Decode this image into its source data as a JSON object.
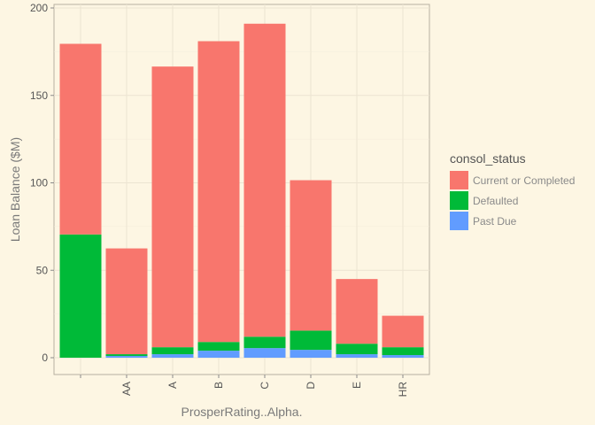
{
  "chart_data": {
    "type": "bar",
    "stacked": true,
    "xlabel": "ProsperRating..Alpha.",
    "ylabel": "Loan Balance ($M)",
    "categories": [
      "",
      "AA",
      "A",
      "B",
      "C",
      "D",
      "E",
      "HR"
    ],
    "ylim": [
      0,
      200
    ],
    "yticks": [
      0,
      50,
      100,
      150,
      200
    ],
    "grid": true,
    "legend_position": "right",
    "legend_title": "consol_status",
    "series": [
      {
        "name": "Past Due",
        "color": "#619cff",
        "values": [
          0,
          1,
          2,
          4,
          5.5,
          4.5,
          2,
          1.5
        ]
      },
      {
        "name": "Defaulted",
        "color": "#00ba38",
        "values": [
          70.5,
          1,
          4,
          5,
          6.5,
          11,
          6,
          4.5
        ]
      },
      {
        "name": "Current or Completed",
        "color": "#f8766d",
        "values": [
          109,
          60.5,
          160.5,
          172,
          179,
          86,
          37,
          18
        ]
      }
    ],
    "legend_order": [
      "Current or Completed",
      "Defaulted",
      "Past Due"
    ]
  }
}
